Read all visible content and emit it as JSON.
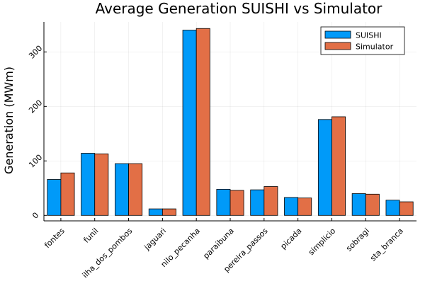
{
  "chart_data": {
    "type": "bar",
    "title": "Average Generation SUISHI vs Simulator",
    "xlabel": "",
    "ylabel": "Generation (MWm)",
    "categories": [
      "fontes",
      "funil",
      "ilha_dos_pombos",
      "jaguari",
      "nilo_pecanha",
      "paraibuna",
      "pereira_passos",
      "picada",
      "simplicio",
      "sobragi",
      "sta_branca"
    ],
    "series": [
      {
        "name": "SUISHI",
        "color": "#009AF9",
        "values": [
          66,
          114,
          95,
          12,
          340,
          48,
          47,
          33,
          176,
          40,
          28
        ]
      },
      {
        "name": "Simulator",
        "color": "#E26F46",
        "values": [
          78,
          113,
          95,
          12,
          343,
          46,
          53,
          32,
          181,
          39,
          25
        ]
      }
    ],
    "yticks": [
      0,
      100,
      200,
      300
    ],
    "ylim": [
      -10,
      355
    ],
    "grid": true,
    "legend_position": "top-right"
  }
}
